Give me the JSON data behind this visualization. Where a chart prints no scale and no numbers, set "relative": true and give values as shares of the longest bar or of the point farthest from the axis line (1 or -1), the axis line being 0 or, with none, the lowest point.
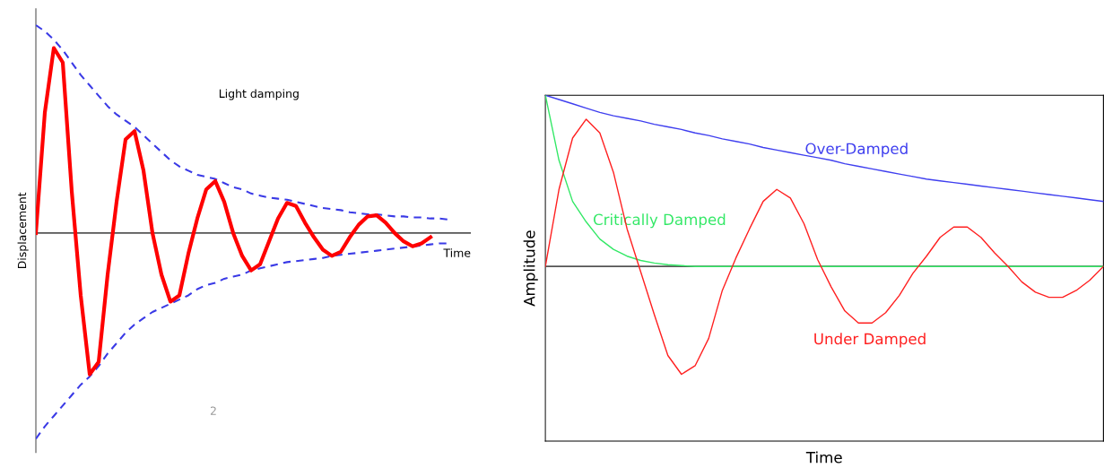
{
  "chart_data": [
    {
      "type": "line",
      "relative": true,
      "xlabel": "Time",
      "ylabel": "Displacement",
      "annotations": [
        "Light damping",
        "2"
      ],
      "categories": [
        null,
        null,
        null,
        null,
        null,
        null,
        null,
        null,
        null,
        null,
        null,
        null,
        null,
        null,
        null,
        null,
        null,
        null,
        null,
        null,
        null,
        null,
        null,
        null,
        null,
        null,
        null,
        null,
        null,
        null,
        null,
        null,
        null,
        null,
        null,
        null,
        null,
        null,
        null,
        null,
        null,
        null,
        null,
        null,
        null,
        null,
        null
      ],
      "series": [
        {
          "color": "#3a3ae6",
          "line_style": "dashed",
          "values": [
            1.0,
            0.97,
            0.93,
            0.88,
            0.82,
            0.76,
            0.71,
            0.66,
            0.61,
            0.57,
            0.54,
            0.51,
            0.47,
            0.43,
            0.39,
            0.35,
            0.32,
            0.3,
            0.28,
            0.27,
            0.26,
            0.24,
            0.22,
            0.21,
            0.19,
            0.18,
            0.17,
            0.165,
            0.16,
            0.15,
            0.14,
            0.13,
            0.12,
            0.115,
            0.11,
            0.1,
            0.095,
            0.09,
            0.09,
            0.085,
            0.08,
            0.08,
            0.075,
            0.075,
            0.07,
            0.07,
            0.065
          ]
        },
        {
          "color": "#3a3ae6",
          "line_style": "dashed",
          "values": [
            -0.99,
            -0.93,
            -0.88,
            -0.83,
            -0.78,
            -0.73,
            -0.69,
            -0.64,
            -0.58,
            -0.53,
            -0.48,
            -0.44,
            -0.41,
            -0.38,
            -0.36,
            -0.34,
            -0.32,
            -0.3,
            -0.27,
            -0.25,
            -0.24,
            -0.22,
            -0.21,
            -0.2,
            -0.18,
            -0.17,
            -0.16,
            -0.15,
            -0.14,
            -0.135,
            -0.13,
            -0.125,
            -0.12,
            -0.11,
            -0.105,
            -0.1,
            -0.095,
            -0.09,
            -0.085,
            -0.08,
            -0.075,
            -0.07,
            -0.065,
            -0.06,
            -0.055,
            -0.05,
            -0.05
          ]
        },
        {
          "color": "#ff0000",
          "line_style": "solid",
          "values": [
            0,
            0.58,
            0.89,
            0.82,
            0.2,
            -0.3,
            -0.68,
            -0.62,
            -0.2,
            0.15,
            0.45,
            0.49,
            0.3,
            0,
            -0.2,
            -0.33,
            -0.3,
            -0.1,
            0.07,
            0.21,
            0.25,
            0.15,
            0,
            -0.11,
            -0.18,
            -0.15,
            -0.04,
            0.07,
            0.145,
            0.13,
            0.05,
            -0.02,
            -0.08,
            -0.11,
            -0.09,
            -0.02,
            0.04,
            0.08,
            0.085,
            0.05,
            0,
            -0.04,
            -0.064,
            -0.05,
            -0.02,
            null,
            null
          ]
        }
      ]
    },
    {
      "type": "line",
      "relative": true,
      "xlabel": "Time",
      "ylabel": "Amplitude",
      "categories": [
        null,
        null,
        null,
        null,
        null,
        null,
        null,
        null,
        null,
        null,
        null,
        null,
        null,
        null,
        null,
        null,
        null,
        null,
        null,
        null,
        null,
        null,
        null,
        null,
        null,
        null,
        null,
        null,
        null,
        null,
        null,
        null,
        null,
        null,
        null,
        null,
        null,
        null,
        null,
        null,
        null,
        null
      ],
      "series": [
        {
          "name": "Over-Damped",
          "color": "#3f3fef",
          "line_style": "solid",
          "values": [
            1.0,
            0.975,
            0.95,
            0.925,
            0.9,
            0.88,
            0.865,
            0.85,
            0.83,
            0.815,
            0.8,
            0.78,
            0.765,
            0.745,
            0.73,
            0.715,
            0.695,
            0.68,
            0.665,
            0.65,
            0.635,
            0.62,
            0.6,
            0.585,
            0.57,
            0.555,
            0.54,
            0.525,
            0.51,
            0.5,
            0.49,
            0.48,
            0.47,
            0.46,
            0.45,
            0.44,
            0.43,
            0.42,
            0.41,
            0.4,
            0.39,
            0.38
          ]
        },
        {
          "name": "Critically Damped",
          "color": "#33e866",
          "line_style": "solid",
          "values": [
            1.0,
            0.62,
            0.38,
            0.26,
            0.16,
            0.1,
            0.06,
            0.035,
            0.02,
            0.01,
            0.005,
            0,
            0,
            0,
            0,
            0,
            0,
            0,
            0,
            0,
            0,
            0,
            0,
            0,
            0,
            0,
            0,
            0,
            0,
            0,
            0,
            0,
            0,
            0,
            0,
            0,
            0,
            0,
            0,
            0,
            0,
            0
          ]
        },
        {
          "name": "Under Damped",
          "color": "#ff2020",
          "line_style": "solid",
          "values": [
            0,
            0.45,
            0.75,
            0.86,
            0.78,
            0.55,
            0.22,
            -0.03,
            -0.28,
            -0.52,
            -0.63,
            -0.58,
            -0.42,
            -0.14,
            0.05,
            0.22,
            0.38,
            0.45,
            0.4,
            0.25,
            0.04,
            -0.12,
            -0.26,
            -0.33,
            -0.33,
            -0.27,
            -0.17,
            -0.04,
            0.06,
            0.17,
            0.23,
            0.23,
            0.17,
            0.08,
            0,
            -0.09,
            -0.15,
            -0.18,
            -0.18,
            -0.14,
            -0.08,
            0.0
          ]
        }
      ]
    }
  ]
}
